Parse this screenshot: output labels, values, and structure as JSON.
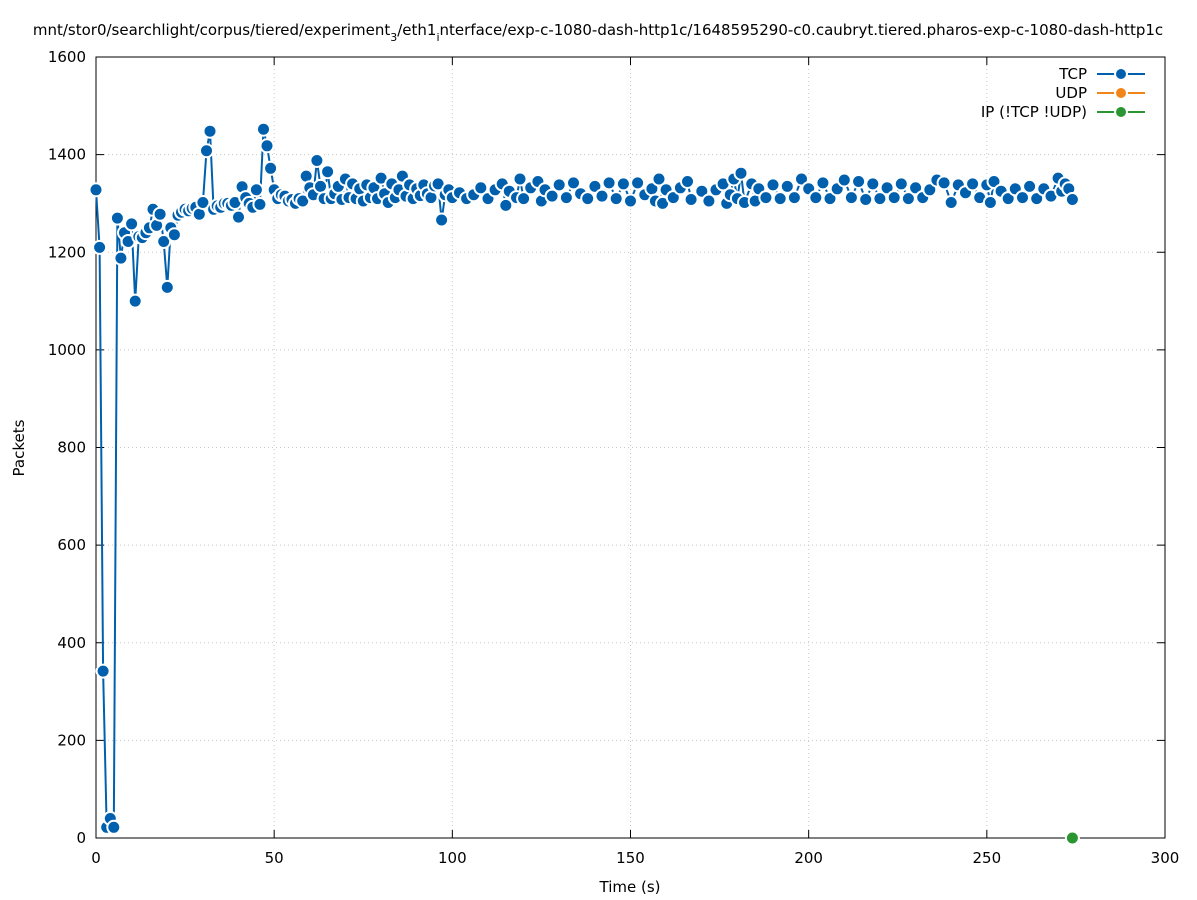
{
  "chart_data": {
    "type": "line",
    "title": "mnt/stor0/searchlight/corpus/tiered/experiment",
    "title_sub": "3",
    "title_mid": "/eth1",
    "title_sub2": "i",
    "title_rest": "nterface/exp-c-1080-dash-http1c/1648595290-c0.caubryt.tiered.pharos-exp-c-1080-dash-http1c",
    "xlabel": "Time (s)",
    "ylabel": "Packets",
    "xlim": [
      0,
      300
    ],
    "ylim": [
      0,
      1600
    ],
    "xticks": [
      "0",
      "50",
      "100",
      "150",
      "200",
      "250",
      "300"
    ],
    "yticks": [
      "0",
      "200",
      "400",
      "600",
      "800",
      "1000",
      "1200",
      "1400",
      "1600"
    ],
    "grid": true,
    "legend_position": "top-right",
    "series": [
      {
        "name": "TCP",
        "color": "#0060ad",
        "points": [
          [
            0,
            1328
          ],
          [
            1,
            1210
          ],
          [
            2,
            342
          ],
          [
            3,
            22
          ],
          [
            4,
            40
          ],
          [
            5,
            22
          ],
          [
            6,
            1270
          ],
          [
            7,
            1188
          ],
          [
            8,
            1240
          ],
          [
            9,
            1222
          ],
          [
            10,
            1258
          ],
          [
            11,
            1100
          ],
          [
            12,
            1232
          ],
          [
            13,
            1230
          ],
          [
            14,
            1240
          ],
          [
            15,
            1250
          ],
          [
            16,
            1288
          ],
          [
            17,
            1255
          ],
          [
            18,
            1278
          ],
          [
            19,
            1222
          ],
          [
            20,
            1128
          ],
          [
            21,
            1250
          ],
          [
            22,
            1236
          ],
          [
            23,
            1276
          ],
          [
            24,
            1282
          ],
          [
            25,
            1288
          ],
          [
            26,
            1285
          ],
          [
            27,
            1290
          ],
          [
            28,
            1292
          ],
          [
            29,
            1278
          ],
          [
            30,
            1302
          ],
          [
            31,
            1408
          ],
          [
            32,
            1448
          ],
          [
            33,
            1288
          ],
          [
            34,
            1295
          ],
          [
            35,
            1292
          ],
          [
            36,
            1300
          ],
          [
            37,
            1300
          ],
          [
            38,
            1296
          ],
          [
            39,
            1302
          ],
          [
            40,
            1272
          ],
          [
            41,
            1334
          ],
          [
            42,
            1312
          ],
          [
            43,
            1300
          ],
          [
            44,
            1292
          ],
          [
            45,
            1328
          ],
          [
            46,
            1298
          ],
          [
            47,
            1452
          ],
          [
            48,
            1418
          ],
          [
            49,
            1372
          ],
          [
            50,
            1328
          ],
          [
            51,
            1310
          ],
          [
            52,
            1318
          ],
          [
            53,
            1315
          ],
          [
            54,
            1305
          ],
          [
            55,
            1308
          ],
          [
            56,
            1300
          ],
          [
            57,
            1310
          ],
          [
            58,
            1305
          ],
          [
            59,
            1356
          ],
          [
            60,
            1332
          ],
          [
            61,
            1318
          ],
          [
            62,
            1388
          ],
          [
            63,
            1335
          ],
          [
            64,
            1310
          ],
          [
            65,
            1365
          ],
          [
            66,
            1310
          ],
          [
            67,
            1320
          ],
          [
            68,
            1335
          ],
          [
            69,
            1308
          ],
          [
            70,
            1350
          ],
          [
            71,
            1312
          ],
          [
            72,
            1340
          ],
          [
            73,
            1310
          ],
          [
            74,
            1330
          ],
          [
            75,
            1305
          ],
          [
            76,
            1338
          ],
          [
            77,
            1312
          ],
          [
            78,
            1332
          ],
          [
            79,
            1310
          ],
          [
            80,
            1352
          ],
          [
            81,
            1320
          ],
          [
            82,
            1302
          ],
          [
            83,
            1340
          ],
          [
            84,
            1312
          ],
          [
            85,
            1328
          ],
          [
            86,
            1356
          ],
          [
            87,
            1315
          ],
          [
            88,
            1338
          ],
          [
            89,
            1310
          ],
          [
            90,
            1330
          ],
          [
            91,
            1316
          ],
          [
            92,
            1338
          ],
          [
            93,
            1320
          ],
          [
            94,
            1312
          ],
          [
            95,
            1336
          ],
          [
            96,
            1340
          ],
          [
            97,
            1266
          ],
          [
            98,
            1318
          ],
          [
            99,
            1328
          ],
          [
            100,
            1312
          ],
          [
            102,
            1322
          ],
          [
            104,
            1310
          ],
          [
            106,
            1318
          ],
          [
            108,
            1332
          ],
          [
            110,
            1310
          ],
          [
            112,
            1328
          ],
          [
            114,
            1340
          ],
          [
            115,
            1296
          ],
          [
            116,
            1325
          ],
          [
            118,
            1312
          ],
          [
            119,
            1350
          ],
          [
            120,
            1310
          ],
          [
            122,
            1332
          ],
          [
            124,
            1345
          ],
          [
            125,
            1305
          ],
          [
            126,
            1328
          ],
          [
            128,
            1315
          ],
          [
            130,
            1338
          ],
          [
            132,
            1312
          ],
          [
            134,
            1342
          ],
          [
            136,
            1320
          ],
          [
            138,
            1310
          ],
          [
            140,
            1335
          ],
          [
            142,
            1315
          ],
          [
            144,
            1342
          ],
          [
            146,
            1310
          ],
          [
            148,
            1340
          ],
          [
            150,
            1305
          ],
          [
            152,
            1342
          ],
          [
            154,
            1318
          ],
          [
            156,
            1330
          ],
          [
            157,
            1305
          ],
          [
            158,
            1350
          ],
          [
            159,
            1300
          ],
          [
            160,
            1328
          ],
          [
            162,
            1312
          ],
          [
            164,
            1332
          ],
          [
            166,
            1345
          ],
          [
            167,
            1308
          ],
          [
            170,
            1325
          ],
          [
            172,
            1305
          ],
          [
            174,
            1328
          ],
          [
            176,
            1340
          ],
          [
            177,
            1300
          ],
          [
            178,
            1318
          ],
          [
            179,
            1350
          ],
          [
            180,
            1310
          ],
          [
            181,
            1362
          ],
          [
            182,
            1302
          ],
          [
            184,
            1340
          ],
          [
            185,
            1305
          ],
          [
            186,
            1330
          ],
          [
            188,
            1312
          ],
          [
            190,
            1338
          ],
          [
            192,
            1310
          ],
          [
            194,
            1335
          ],
          [
            196,
            1312
          ],
          [
            198,
            1350
          ],
          [
            200,
            1330
          ],
          [
            202,
            1312
          ],
          [
            204,
            1342
          ],
          [
            206,
            1310
          ],
          [
            208,
            1330
          ],
          [
            210,
            1348
          ],
          [
            212,
            1312
          ],
          [
            214,
            1345
          ],
          [
            216,
            1308
          ],
          [
            218,
            1340
          ],
          [
            220,
            1310
          ],
          [
            222,
            1332
          ],
          [
            224,
            1312
          ],
          [
            226,
            1340
          ],
          [
            228,
            1310
          ],
          [
            230,
            1332
          ],
          [
            232,
            1312
          ],
          [
            234,
            1328
          ],
          [
            236,
            1348
          ],
          [
            238,
            1342
          ],
          [
            240,
            1302
          ],
          [
            242,
            1338
          ],
          [
            244,
            1322
          ],
          [
            246,
            1340
          ],
          [
            248,
            1312
          ],
          [
            250,
            1338
          ],
          [
            251,
            1302
          ],
          [
            252,
            1345
          ],
          [
            254,
            1325
          ],
          [
            256,
            1310
          ],
          [
            258,
            1330
          ],
          [
            260,
            1312
          ],
          [
            262,
            1335
          ],
          [
            264,
            1310
          ],
          [
            266,
            1330
          ],
          [
            268,
            1315
          ],
          [
            270,
            1352
          ],
          [
            271,
            1325
          ],
          [
            272,
            1340
          ],
          [
            273,
            1330
          ],
          [
            274,
            1308
          ]
        ]
      },
      {
        "name": "UDP",
        "color": "#f28518",
        "points": []
      },
      {
        "name": "IP (!TCP  !UDP)",
        "color": "#2a9631",
        "points": [
          [
            274,
            0
          ]
        ]
      }
    ]
  }
}
